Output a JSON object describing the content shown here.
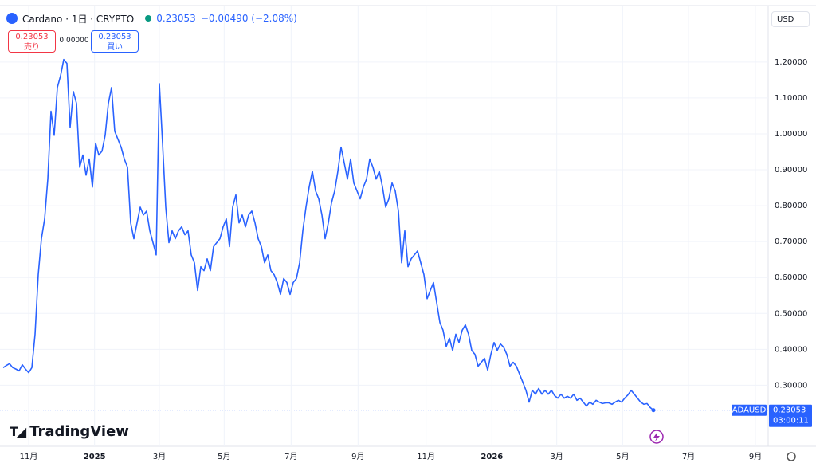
{
  "header": {
    "symbol": "Cardano · 1日 · CRYPTO",
    "price": "0.23053",
    "change": "−0.00490 (−2.08%)",
    "currency": "USD",
    "sell_price": "0.23053",
    "sell_label": "売り",
    "spread": "0.00000",
    "buy_price": "0.23053",
    "buy_label": "買い",
    "brand": "TradingView"
  },
  "chart_data": {
    "type": "line",
    "color": "#2962ff",
    "symbol_tag": "ADAUSD",
    "countdown": "03:00:11",
    "xlim": [
      0,
      720
    ],
    "ylim": [
      0.13,
      1.355
    ],
    "grid": true,
    "xticks": [
      {
        "value": 24,
        "label": "11月"
      },
      {
        "value": 86,
        "label": "2025"
      },
      {
        "value": 147,
        "label": "3月"
      },
      {
        "value": 208,
        "label": "5月"
      },
      {
        "value": 271,
        "label": "7月"
      },
      {
        "value": 334,
        "label": "9月"
      },
      {
        "value": 398,
        "label": "11月"
      },
      {
        "value": 460,
        "label": "2026"
      },
      {
        "value": 521,
        "label": "3月"
      },
      {
        "value": 583,
        "label": "5月"
      },
      {
        "value": 645,
        "label": "7月"
      },
      {
        "value": 708,
        "label": "9月"
      }
    ],
    "yticks": [
      {
        "value": 0.3,
        "label": "0.30000"
      },
      {
        "value": 0.4,
        "label": "0.40000"
      },
      {
        "value": 0.5,
        "label": "0.50000"
      },
      {
        "value": 0.6,
        "label": "0.60000"
      },
      {
        "value": 0.7,
        "label": "0.70000"
      },
      {
        "value": 0.8,
        "label": "0.80000"
      },
      {
        "value": 0.9,
        "label": "0.90000"
      },
      {
        "value": 1.0,
        "label": "1.00000"
      },
      {
        "value": 1.1,
        "label": "1.10000"
      },
      {
        "value": 1.2,
        "label": "1.20000"
      }
    ],
    "x": [
      0,
      3,
      6,
      9,
      12,
      15,
      18,
      21,
      24,
      27,
      30,
      33,
      36,
      39,
      42,
      45,
      48,
      51,
      54,
      57,
      60,
      63,
      66,
      69,
      72,
      75,
      78,
      81,
      84,
      87,
      90,
      93,
      96,
      99,
      102,
      105,
      108,
      111,
      114,
      117,
      120,
      123,
      126,
      129,
      132,
      135,
      138,
      141,
      144,
      147,
      150,
      153,
      156,
      159,
      162,
      165,
      168,
      171,
      174,
      177,
      180,
      183,
      186,
      189,
      192,
      195,
      198,
      201,
      204,
      207,
      210,
      213,
      216,
      219,
      222,
      225,
      228,
      231,
      234,
      237,
      240,
      243,
      246,
      249,
      252,
      255,
      258,
      261,
      264,
      267,
      270,
      273,
      276,
      279,
      282,
      285,
      288,
      291,
      294,
      297,
      300,
      303,
      306,
      309,
      312,
      315,
      318,
      321,
      324,
      327,
      330,
      333,
      336,
      339,
      342,
      345,
      348,
      351,
      354,
      357,
      360,
      363,
      366,
      369,
      372,
      375,
      378,
      381,
      384,
      387,
      390,
      393,
      396,
      399,
      402,
      405,
      408,
      411,
      414,
      417,
      420,
      423,
      426,
      429,
      432,
      435,
      438,
      441,
      444,
      447,
      450,
      453,
      456,
      459,
      462,
      465,
      468,
      471,
      474,
      477,
      480,
      483,
      486,
      489,
      492,
      495,
      498,
      501,
      504,
      507,
      510,
      513,
      516,
      519,
      522,
      525,
      528,
      531,
      534,
      537,
      540,
      543,
      546,
      549,
      552,
      555,
      558,
      561,
      564,
      567,
      570,
      573,
      576,
      579,
      582,
      585,
      588,
      591,
      594,
      597,
      600,
      603,
      606,
      609,
      612
    ],
    "values": [
      0.349,
      0.355,
      0.36,
      0.349,
      0.345,
      0.34,
      0.357,
      0.345,
      0.335,
      0.349,
      0.442,
      0.608,
      0.708,
      0.763,
      0.874,
      1.063,
      0.996,
      1.129,
      1.162,
      1.207,
      1.196,
      1.018,
      1.118,
      1.085,
      0.907,
      0.941,
      0.885,
      0.93,
      0.852,
      0.974,
      0.941,
      0.952,
      0.996,
      1.085,
      1.129,
      1.007,
      0.985,
      0.963,
      0.93,
      0.907,
      0.752,
      0.708,
      0.752,
      0.796,
      0.774,
      0.785,
      0.73,
      0.697,
      0.663,
      1.14,
      0.974,
      0.796,
      0.697,
      0.73,
      0.708,
      0.73,
      0.741,
      0.719,
      0.73,
      0.663,
      0.641,
      0.564,
      0.63,
      0.619,
      0.652,
      0.619,
      0.686,
      0.697,
      0.708,
      0.741,
      0.763,
      0.686,
      0.796,
      0.83,
      0.752,
      0.774,
      0.741,
      0.774,
      0.785,
      0.752,
      0.708,
      0.686,
      0.641,
      0.663,
      0.619,
      0.608,
      0.586,
      0.553,
      0.597,
      0.586,
      0.553,
      0.586,
      0.597,
      0.641,
      0.73,
      0.796,
      0.852,
      0.896,
      0.841,
      0.819,
      0.774,
      0.708,
      0.752,
      0.808,
      0.841,
      0.896,
      0.963,
      0.919,
      0.874,
      0.93,
      0.863,
      0.841,
      0.819,
      0.852,
      0.874,
      0.93,
      0.907,
      0.874,
      0.896,
      0.852,
      0.796,
      0.819,
      0.863,
      0.841,
      0.785,
      0.641,
      0.73,
      0.63,
      0.652,
      0.663,
      0.674,
      0.641,
      0.608,
      0.541,
      0.564,
      0.586,
      0.53,
      0.475,
      0.453,
      0.408,
      0.431,
      0.397,
      0.442,
      0.419,
      0.453,
      0.468,
      0.442,
      0.397,
      0.386,
      0.353,
      0.364,
      0.375,
      0.342,
      0.386,
      0.419,
      0.397,
      0.415,
      0.406,
      0.386,
      0.353,
      0.364,
      0.353,
      0.331,
      0.309,
      0.286,
      0.253,
      0.286,
      0.275,
      0.291,
      0.275,
      0.286,
      0.275,
      0.286,
      0.271,
      0.264,
      0.275,
      0.264,
      0.269,
      0.264,
      0.275,
      0.258,
      0.264,
      0.253,
      0.242,
      0.253,
      0.247,
      0.258,
      0.253,
      0.249,
      0.251,
      0.251,
      0.247,
      0.253,
      0.258,
      0.253,
      0.264,
      0.273,
      0.286,
      0.275,
      0.264,
      0.253,
      0.247,
      0.249,
      0.238,
      0.23053
    ]
  }
}
